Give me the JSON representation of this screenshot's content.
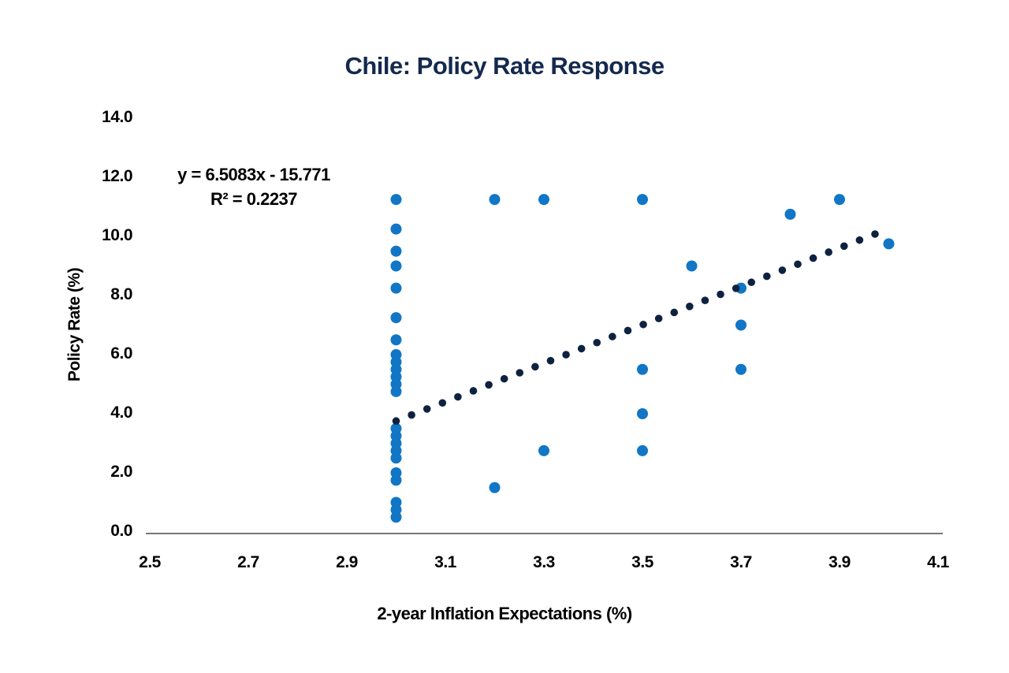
{
  "chart_data": {
    "type": "scatter",
    "title": "Chile: Policy Rate Response",
    "xlabel": "2-year Inflation Expectations (%)",
    "ylabel": "Policy Rate (%)",
    "annotation": {
      "equation": "y = 6.5083x - 15.771",
      "r_squared": "R² = 0.2237"
    },
    "x_axis": {
      "range": [
        2.5,
        4.1
      ],
      "ticks": [
        "2.5",
        "2.7",
        "2.9",
        "3.1",
        "3.3",
        "3.5",
        "3.7",
        "3.9",
        "4.1"
      ],
      "grid": false
    },
    "y_axis": {
      "range": [
        0,
        14
      ],
      "ticks": [
        "0.0",
        "2.0",
        "4.0",
        "6.0",
        "8.0",
        "10.0",
        "12.0",
        "14.0"
      ],
      "grid": false
    },
    "legend": "none",
    "series": [
      {
        "name": "policy-rate-observations",
        "color": "#1176c6",
        "marker": "circle",
        "marker_radius": 7,
        "points": [
          [
            3.0,
            11.25
          ],
          [
            3.0,
            10.25
          ],
          [
            3.0,
            9.5
          ],
          [
            3.0,
            9.0
          ],
          [
            3.0,
            8.25
          ],
          [
            3.0,
            7.25
          ],
          [
            3.0,
            6.5
          ],
          [
            3.0,
            6.0
          ],
          [
            3.0,
            5.75
          ],
          [
            3.0,
            5.5
          ],
          [
            3.0,
            5.25
          ],
          [
            3.0,
            5.0
          ],
          [
            3.0,
            4.75
          ],
          [
            3.0,
            3.5
          ],
          [
            3.0,
            3.25
          ],
          [
            3.0,
            3.0
          ],
          [
            3.0,
            2.75
          ],
          [
            3.0,
            2.5
          ],
          [
            3.0,
            2.0
          ],
          [
            3.0,
            1.75
          ],
          [
            3.0,
            1.0
          ],
          [
            3.0,
            0.75
          ],
          [
            3.0,
            0.5
          ],
          [
            3.2,
            11.25
          ],
          [
            3.2,
            1.5
          ],
          [
            3.3,
            11.25
          ],
          [
            3.3,
            2.75
          ],
          [
            3.5,
            11.25
          ],
          [
            3.5,
            5.5
          ],
          [
            3.5,
            4.0
          ],
          [
            3.5,
            2.75
          ],
          [
            3.6,
            9.0
          ],
          [
            3.7,
            8.25
          ],
          [
            3.7,
            7.0
          ],
          [
            3.7,
            5.5
          ],
          [
            3.8,
            10.75
          ],
          [
            3.9,
            11.25
          ],
          [
            4.0,
            9.75
          ]
        ]
      }
    ],
    "trendline": {
      "type": "linear",
      "slope": 6.5083,
      "intercept": -15.771,
      "x_start": 3.0,
      "x_end": 3.972,
      "style": "dotted",
      "dot_count": 32,
      "dot_radius": 4.8,
      "color": "#0e2240"
    },
    "colors": {
      "title": "#14294e",
      "axis_line": "#4a4a4a",
      "tick_text": "#000000"
    }
  }
}
